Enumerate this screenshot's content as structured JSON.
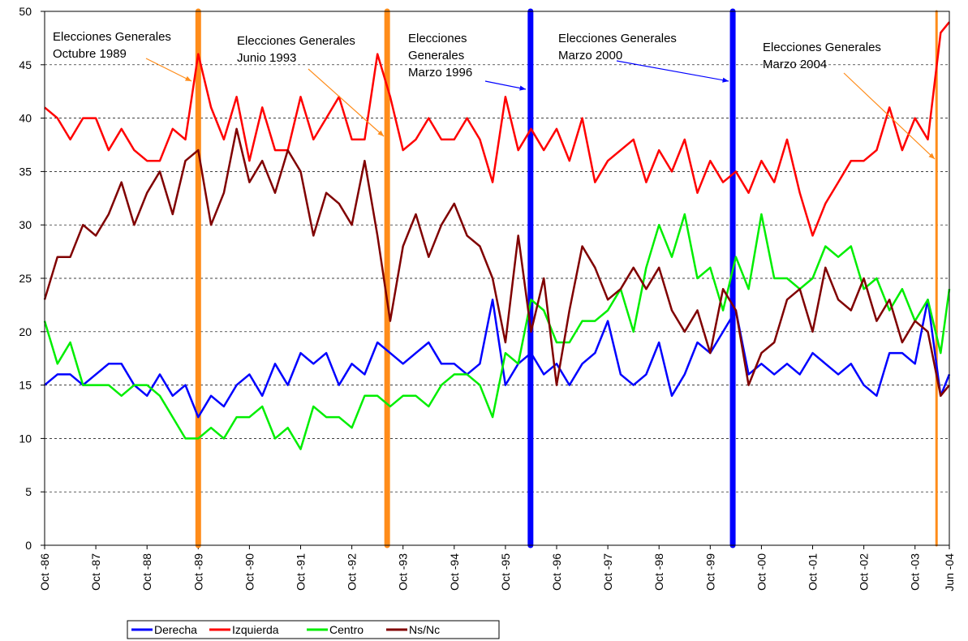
{
  "chart_data": {
    "type": "line",
    "x": [
      1986.75,
      1987,
      1987.25,
      1987.5,
      1987.75,
      1988,
      1988.25,
      1988.5,
      1988.75,
      1989,
      1989.25,
      1989.5,
      1989.75,
      1990,
      1990.25,
      1990.5,
      1990.75,
      1991,
      1991.25,
      1991.5,
      1991.75,
      1992,
      1992.25,
      1992.5,
      1992.75,
      1993,
      1993.25,
      1993.5,
      1993.75,
      1994,
      1994.25,
      1994.5,
      1994.75,
      1995,
      1995.25,
      1995.5,
      1995.75,
      1996,
      1996.25,
      1996.5,
      1996.75,
      1997,
      1997.25,
      1997.5,
      1997.75,
      1998,
      1998.25,
      1998.5,
      1998.75,
      1999,
      1999.25,
      1999.5,
      1999.75,
      2000,
      2000.25,
      2000.5,
      2000.75,
      2001,
      2001.25,
      2001.5,
      2001.75,
      2002,
      2002.25,
      2002.5,
      2002.75,
      2003,
      2003.25,
      2003.5,
      2003.75,
      2004,
      2004.25,
      2004.42
    ],
    "series": [
      {
        "name": "Derecha",
        "color": "#0000ff",
        "values": [
          15,
          16,
          16,
          15,
          16,
          17,
          17,
          15,
          14,
          16,
          14,
          15,
          12,
          14,
          13,
          15,
          16,
          14,
          17,
          15,
          18,
          17,
          18,
          15,
          17,
          16,
          19,
          18,
          17,
          18,
          19,
          17,
          17,
          16,
          17,
          23,
          15,
          17,
          18,
          16,
          17,
          15,
          17,
          18,
          21,
          16,
          15,
          16,
          19,
          14,
          16,
          19,
          18,
          20,
          22,
          16,
          17,
          16,
          17,
          16,
          18,
          17,
          16,
          17,
          15,
          14,
          18,
          18,
          17,
          23,
          14,
          16
        ]
      },
      {
        "name": "Izquierda",
        "color": "#ff0000",
        "values": [
          41,
          40,
          38,
          40,
          40,
          37,
          39,
          37,
          36,
          36,
          39,
          38,
          46,
          41,
          38,
          42,
          36,
          41,
          37,
          37,
          42,
          38,
          40,
          42,
          38,
          38,
          46,
          42,
          37,
          38,
          40,
          38,
          38,
          40,
          38,
          34,
          42,
          37,
          39,
          37,
          39,
          36,
          40,
          34,
          36,
          37,
          38,
          34,
          37,
          35,
          38,
          33,
          36,
          34,
          35,
          33,
          36,
          34,
          38,
          33,
          29,
          32,
          34,
          36,
          36,
          37,
          41,
          37,
          40,
          38,
          48,
          49
        ]
      },
      {
        "name": "Centro",
        "color": "#00ee00",
        "values": [
          21,
          17,
          19,
          15,
          15,
          15,
          14,
          15,
          15,
          14,
          12,
          10,
          10,
          11,
          10,
          12,
          12,
          13,
          10,
          11,
          9,
          13,
          12,
          12,
          11,
          14,
          14,
          13,
          14,
          14,
          13,
          15,
          16,
          16,
          15,
          12,
          18,
          17,
          23,
          22,
          19,
          19,
          21,
          21,
          22,
          24,
          20,
          26,
          30,
          27,
          31,
          25,
          26,
          22,
          27,
          24,
          31,
          25,
          25,
          24,
          25,
          28,
          27,
          28,
          24,
          25,
          22,
          24,
          21,
          23,
          18,
          24
        ]
      },
      {
        "name": "Ns/Nc",
        "color": "#800000",
        "values": [
          23,
          27,
          27,
          30,
          29,
          31,
          34,
          30,
          33,
          35,
          31,
          36,
          37,
          30,
          33,
          39,
          34,
          36,
          33,
          37,
          35,
          29,
          33,
          32,
          30,
          36,
          29,
          21,
          28,
          31,
          27,
          30,
          32,
          29,
          28,
          25,
          19,
          29,
          20,
          25,
          15,
          22,
          28,
          26,
          23,
          24,
          26,
          24,
          26,
          22,
          20,
          22,
          18,
          24,
          22,
          15,
          18,
          19,
          23,
          24,
          20,
          26,
          23,
          22,
          25,
          21,
          23,
          19,
          21,
          20,
          14,
          15
        ]
      }
    ],
    "events": [
      {
        "x": 1989.75,
        "color": "#ff8c1a",
        "text": [
          "Elecciones Generales",
          "Octubre 1989"
        ]
      },
      {
        "x": 1993.44,
        "color": "#ff8c1a",
        "text": [
          "Elecciones Generales",
          "Junio 1993"
        ]
      },
      {
        "x": 1996.24,
        "color": "#0000ff",
        "text": [
          "Elecciones",
          "Generales",
          "Marzo 1996"
        ]
      },
      {
        "x": 2000.19,
        "color": "#0000ff",
        "text": [
          "Elecciones Generales",
          "Marzo 2000"
        ]
      },
      {
        "x": 2004.17,
        "color": "#ff8c1a",
        "text": [
          "Elecciones Generales",
          "Marzo 2004"
        ]
      }
    ],
    "xlim": [
      1986.75,
      2004.42
    ],
    "xticks": [
      {
        "value": 1986.75,
        "label": "Oct -86"
      },
      {
        "value": 1987.75,
        "label": "Oct -87"
      },
      {
        "value": 1988.75,
        "label": "Oct -88"
      },
      {
        "value": 1989.75,
        "label": "Oct -89"
      },
      {
        "value": 1990.75,
        "label": "Oct -90"
      },
      {
        "value": 1991.75,
        "label": "Oct -91"
      },
      {
        "value": 1992.75,
        "label": "Oct -92"
      },
      {
        "value": 1993.75,
        "label": "Oct -93"
      },
      {
        "value": 1994.75,
        "label": "Oct -94"
      },
      {
        "value": 1995.75,
        "label": "Oct -95"
      },
      {
        "value": 1996.75,
        "label": "Oct -96"
      },
      {
        "value": 1997.75,
        "label": "Oct -97"
      },
      {
        "value": 1998.75,
        "label": "Oct -98"
      },
      {
        "value": 1999.75,
        "label": "Oct -99"
      },
      {
        "value": 2000.75,
        "label": "Oct -00"
      },
      {
        "value": 2001.75,
        "label": "Oct -01"
      },
      {
        "value": 2002.75,
        "label": "Oct -02"
      },
      {
        "value": 2003.75,
        "label": "Oct -03"
      },
      {
        "value": 2004.42,
        "label": "Jun -04"
      }
    ],
    "ylim": [
      0,
      50
    ],
    "yticks": [
      0,
      5,
      10,
      15,
      20,
      25,
      30,
      35,
      40,
      45,
      50
    ],
    "grid": true,
    "legend": "bottom"
  }
}
